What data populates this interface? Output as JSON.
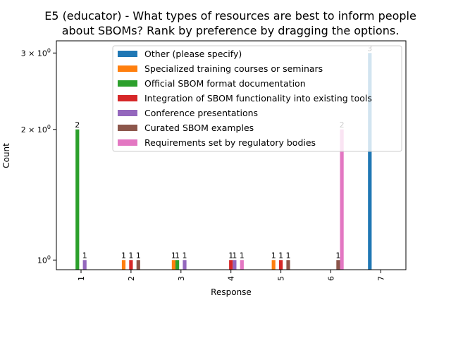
{
  "chart_data": {
    "type": "bar",
    "title_lines": [
      "E5 (educator) - What types of resources are best to inform people",
      "about SBOMs? Rank by preference by dragging the options."
    ],
    "xlabel": "Response",
    "ylabel": "Count",
    "categories": [
      "1",
      "2",
      "3",
      "4",
      "5",
      "6",
      "7"
    ],
    "yscale": "log",
    "ylim": [
      0.95,
      3.2
    ],
    "yticks": [
      {
        "value": 1,
        "base": "10",
        "exp": "0"
      },
      {
        "value": 2,
        "base": "2 × 10",
        "exp": "0"
      },
      {
        "value": 3,
        "base": "3 × 10",
        "exp": "0"
      }
    ],
    "legend_position": "upper-center",
    "grid": false,
    "series": [
      {
        "name": "Other (please specify)",
        "color": "#1f77b4",
        "values": [
          null,
          null,
          null,
          null,
          null,
          null,
          3
        ]
      },
      {
        "name": "Specialized training courses or seminars",
        "color": "#ff7f0e",
        "values": [
          null,
          1,
          1,
          null,
          1,
          null,
          null
        ]
      },
      {
        "name": "Official SBOM format documentation",
        "color": "#2ca02c",
        "values": [
          2,
          null,
          1,
          null,
          null,
          null,
          null
        ]
      },
      {
        "name": "Integration of SBOM functionality into existing tools",
        "color": "#d62728",
        "values": [
          null,
          1,
          null,
          1,
          1,
          null,
          null
        ]
      },
      {
        "name": "Conference presentations",
        "color": "#9467bd",
        "values": [
          1,
          null,
          1,
          1,
          null,
          null,
          null
        ]
      },
      {
        "name": "Curated SBOM examples",
        "color": "#8c564b",
        "values": [
          null,
          1,
          null,
          null,
          1,
          1,
          null
        ]
      },
      {
        "name": "Requirements set by regulatory bodies",
        "color": "#e377c2",
        "values": [
          null,
          null,
          null,
          1,
          null,
          2,
          null
        ]
      }
    ]
  }
}
